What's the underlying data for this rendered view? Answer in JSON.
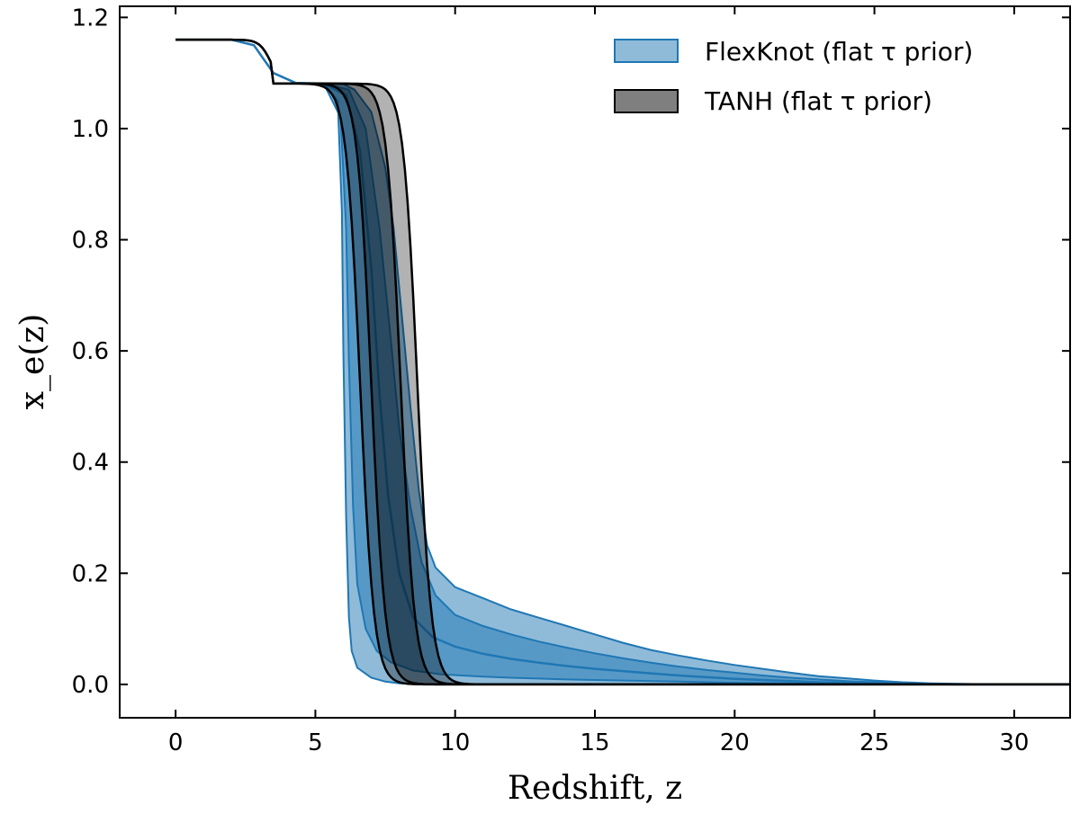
{
  "chart_data": {
    "type": "area",
    "xlabel": "Redshift, z",
    "ylabel": "x_e(z)",
    "xlim": [
      -2,
      32
    ],
    "ylim": [
      -0.06,
      1.22
    ],
    "x_ticks": [
      0,
      5,
      10,
      15,
      20,
      25,
      30
    ],
    "y_ticks": [
      0.0,
      0.2,
      0.4,
      0.6,
      0.8,
      1.0,
      1.2
    ],
    "x_tick_labels": [
      "0",
      "5",
      "10",
      "15",
      "20",
      "25",
      "30"
    ],
    "y_tick_labels": [
      "0.0",
      "0.2",
      "0.4",
      "0.6",
      "0.8",
      "1.0",
      "1.2"
    ],
    "grid": false,
    "ticks_direction": "in",
    "legend_position": "top-right",
    "colors": {
      "flexknot": "#1f77b4",
      "tanh": "#000000"
    },
    "series": [
      {
        "name": "FlexKnot (flat τ prior)",
        "legend_label": "FlexKnot (flat τ prior)",
        "kind": "band",
        "color": "#1f77b4",
        "bands": [
          {
            "level": "outer",
            "upper": [
              [
                0,
                1.16
              ],
              [
                2,
                1.16
              ],
              [
                2.8,
                1.15
              ],
              [
                3.5,
                1.1
              ],
              [
                4.3,
                1.082
              ],
              [
                5.3,
                1.081
              ],
              [
                6.0,
                1.08
              ],
              [
                6.4,
                1.07
              ],
              [
                7.0,
                1.03
              ],
              [
                7.5,
                0.93
              ],
              [
                7.8,
                0.82
              ],
              [
                8.1,
                0.66
              ],
              [
                8.4,
                0.5
              ],
              [
                8.7,
                0.35
              ],
              [
                9.0,
                0.25
              ],
              [
                9.3,
                0.21
              ],
              [
                10,
                0.175
              ],
              [
                11,
                0.155
              ],
              [
                12,
                0.135
              ],
              [
                13,
                0.12
              ],
              [
                14,
                0.105
              ],
              [
                15,
                0.09
              ],
              [
                16,
                0.075
              ],
              [
                17,
                0.062
              ],
              [
                18,
                0.052
              ],
              [
                19,
                0.043
              ],
              [
                20,
                0.035
              ],
              [
                21,
                0.028
              ],
              [
                22,
                0.021
              ],
              [
                23,
                0.015
              ],
              [
                24,
                0.011
              ],
              [
                25,
                0.007
              ],
              [
                26,
                0.004
              ],
              [
                27,
                0.002
              ],
              [
                28,
                0.001
              ],
              [
                29,
                0.0003
              ],
              [
                30,
                0.0
              ],
              [
                32,
                0.0
              ]
            ],
            "lower": [
              [
                0,
                1.16
              ],
              [
                2,
                1.16
              ],
              [
                2.8,
                1.15
              ],
              [
                3.5,
                1.1
              ],
              [
                4.3,
                1.082
              ],
              [
                5.3,
                1.081
              ],
              [
                5.8,
                1.05
              ],
              [
                5.95,
                0.85
              ],
              [
                6.0,
                0.6
              ],
              [
                6.1,
                0.3
              ],
              [
                6.2,
                0.12
              ],
              [
                6.3,
                0.06
              ],
              [
                6.5,
                0.03
              ],
              [
                7.0,
                0.012
              ],
              [
                7.5,
                0.005
              ],
              [
                8.0,
                0.002
              ],
              [
                9,
                0.0
              ],
              [
                32,
                0.0
              ]
            ]
          },
          {
            "level": "inner",
            "upper": [
              [
                0,
                1.16
              ],
              [
                2,
                1.16
              ],
              [
                2.8,
                1.15
              ],
              [
                3.5,
                1.1
              ],
              [
                4.3,
                1.082
              ],
              [
                5.3,
                1.081
              ],
              [
                6.2,
                1.07
              ],
              [
                6.8,
                1.0
              ],
              [
                7.3,
                0.82
              ],
              [
                7.7,
                0.62
              ],
              [
                8.0,
                0.46
              ],
              [
                8.4,
                0.32
              ],
              [
                8.8,
                0.22
              ],
              [
                9.3,
                0.16
              ],
              [
                10,
                0.125
              ],
              [
                11,
                0.105
              ],
              [
                12,
                0.09
              ],
              [
                13,
                0.077
              ],
              [
                14,
                0.066
              ],
              [
                15,
                0.056
              ],
              [
                16,
                0.047
              ],
              [
                17,
                0.039
              ],
              [
                18,
                0.032
              ],
              [
                19,
                0.026
              ],
              [
                20,
                0.021
              ],
              [
                21,
                0.016
              ],
              [
                22,
                0.012
              ],
              [
                23,
                0.009
              ],
              [
                24,
                0.006
              ],
              [
                25,
                0.004
              ],
              [
                26,
                0.002
              ],
              [
                27,
                0.001
              ],
              [
                28,
                0.0003
              ],
              [
                29,
                0.0
              ],
              [
                32,
                0.0
              ]
            ],
            "lower": [
              [
                0,
                1.16
              ],
              [
                2,
                1.16
              ],
              [
                2.8,
                1.15
              ],
              [
                3.5,
                1.1
              ],
              [
                4.3,
                1.082
              ],
              [
                5.3,
                1.081
              ],
              [
                5.9,
                1.02
              ],
              [
                6.1,
                0.82
              ],
              [
                6.2,
                0.58
              ],
              [
                6.35,
                0.32
              ],
              [
                6.5,
                0.18
              ],
              [
                6.8,
                0.1
              ],
              [
                7.2,
                0.06
              ],
              [
                7.7,
                0.04
              ],
              [
                8.5,
                0.025
              ],
              [
                9.5,
                0.018
              ],
              [
                11,
                0.014
              ],
              [
                12,
                0.012
              ],
              [
                14,
                0.009
              ],
              [
                16,
                0.007
              ],
              [
                18,
                0.005
              ],
              [
                20,
                0.003
              ],
              [
                22,
                0.002
              ],
              [
                24,
                0.001
              ],
              [
                26,
                0.0004
              ],
              [
                28,
                0.0
              ],
              [
                32,
                0.0
              ]
            ]
          }
        ],
        "median": [
          [
            0,
            1.16
          ],
          [
            2,
            1.16
          ],
          [
            2.8,
            1.15
          ],
          [
            3.5,
            1.1
          ],
          [
            4.3,
            1.082
          ],
          [
            5.3,
            1.081
          ],
          [
            6.1,
            1.06
          ],
          [
            6.6,
            0.96
          ],
          [
            7.0,
            0.75
          ],
          [
            7.3,
            0.52
          ],
          [
            7.6,
            0.34
          ],
          [
            8.0,
            0.2
          ],
          [
            8.5,
            0.12
          ],
          [
            9.2,
            0.085
          ],
          [
            10,
            0.068
          ],
          [
            11,
            0.055
          ],
          [
            12,
            0.046
          ],
          [
            13,
            0.039
          ],
          [
            14,
            0.033
          ],
          [
            15,
            0.028
          ],
          [
            16,
            0.024
          ],
          [
            17,
            0.02
          ],
          [
            18,
            0.016
          ],
          [
            19,
            0.013
          ],
          [
            20,
            0.01
          ],
          [
            21,
            0.008
          ],
          [
            22,
            0.006
          ],
          [
            23,
            0.004
          ],
          [
            24,
            0.003
          ],
          [
            25,
            0.002
          ],
          [
            26,
            0.001
          ],
          [
            27,
            0.0005
          ],
          [
            28,
            0.0
          ],
          [
            32,
            0.0
          ]
        ]
      },
      {
        "name": "TANH (flat τ prior)",
        "legend_label": "TANH (flat τ prior)",
        "kind": "tanh_band",
        "color": "#000000",
        "top_value": 1.081,
        "bands": [
          {
            "level": "outer",
            "z_low": 6.6,
            "z_high": 8.65
          },
          {
            "level": "inner",
            "z_low": 7.0,
            "z_high": 8.05
          }
        ],
        "width": 0.5
      }
    ]
  }
}
